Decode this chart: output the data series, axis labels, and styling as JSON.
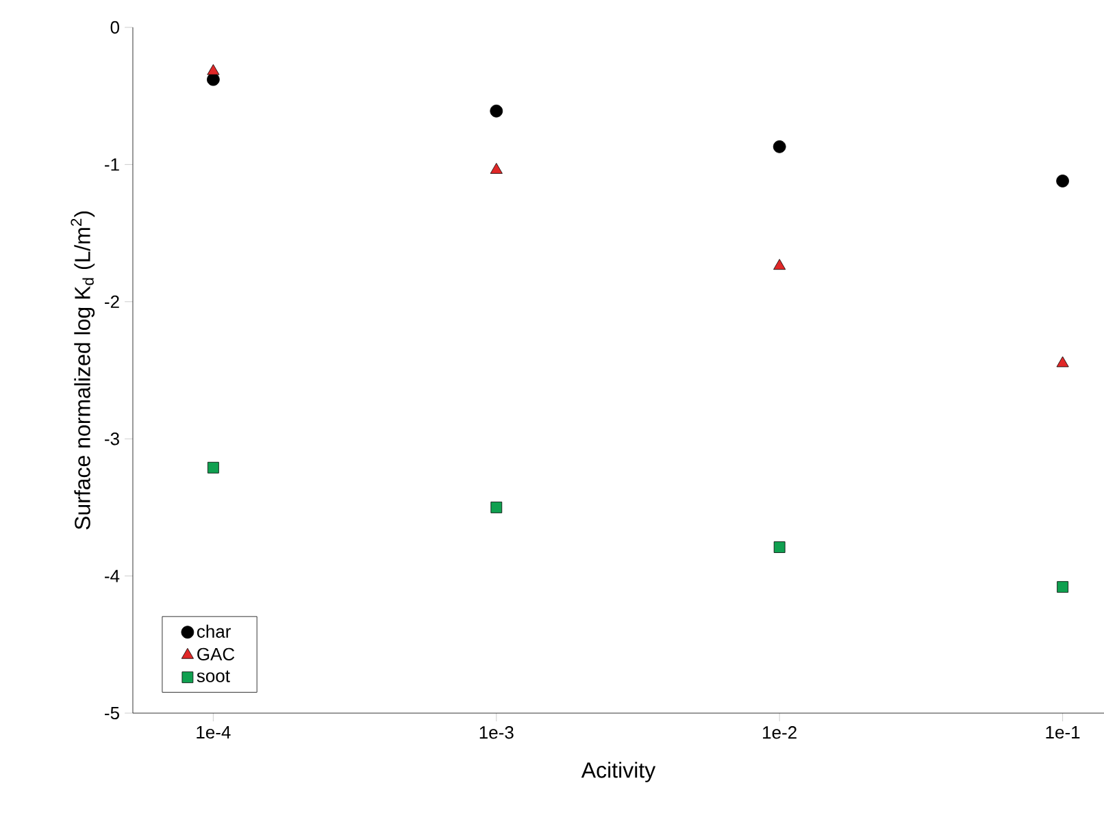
{
  "chart_data": {
    "type": "scatter",
    "xlabel": "Acitivity",
    "ylabel": "Surface normalized log K$_{d}$ (L/m$^{2}$)",
    "log": "x",
    "x": [
      0.0001,
      0.001,
      0.01,
      0.1
    ],
    "xlim": [
      5.2e-05,
      0.14
    ],
    "xticks": [
      {
        "value": 0.0001,
        "label": "1e-4"
      },
      {
        "value": 0.001,
        "label": "1e-3"
      },
      {
        "value": 0.01,
        "label": "1e-2"
      },
      {
        "value": 0.1,
        "label": "1e-1"
      }
    ],
    "ylim": [
      -5,
      0
    ],
    "yticks": [
      -5,
      -4,
      -3,
      -2,
      -1,
      0
    ],
    "legend": "bottom left",
    "grid": false,
    "series": [
      {
        "name": "char",
        "color": "#000000",
        "marker": "circle",
        "values": [
          -0.38,
          -0.61,
          -0.87,
          -1.12
        ]
      },
      {
        "name": "GAC",
        "color": "#e02828",
        "marker": "triangle",
        "values": [
          -0.32,
          -1.04,
          -1.74,
          -2.45
        ]
      },
      {
        "name": "soot",
        "color": "#10a050",
        "marker": "square",
        "values": [
          -3.21,
          -3.5,
          -3.79,
          -4.08
        ]
      }
    ]
  }
}
